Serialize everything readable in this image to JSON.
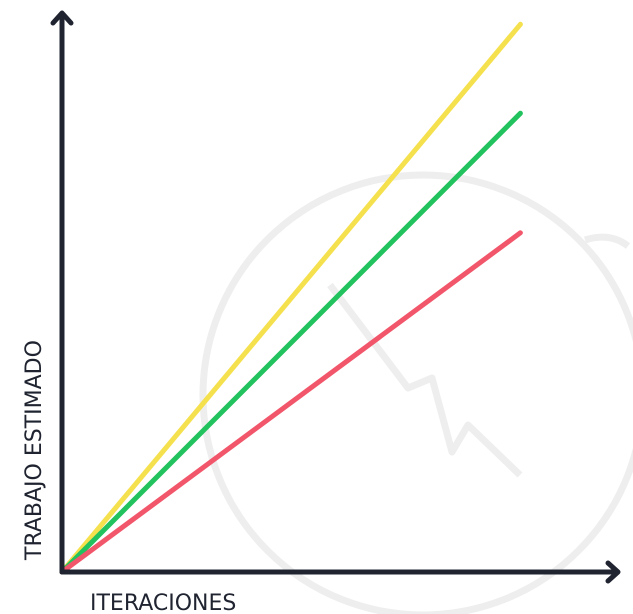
{
  "chart_data": {
    "type": "line",
    "title": "",
    "xlabel": "ITERACIONES",
    "ylabel": "TRABAJO ESTIMADO",
    "xlim": [
      0,
      1
    ],
    "ylim": [
      0,
      1
    ],
    "grid": false,
    "x": [
      0,
      0.82
    ],
    "series": [
      {
        "color": "#f5e04e",
        "values": [
          0,
          0.985
        ]
      },
      {
        "color": "#22c35e",
        "values": [
          0,
          0.825
        ]
      },
      {
        "color": "#f2566b",
        "values": [
          0,
          0.61
        ]
      }
    ],
    "axis_color": "#1f2430",
    "watermark_color": "#eeeeee",
    "background": "#ffffff"
  }
}
